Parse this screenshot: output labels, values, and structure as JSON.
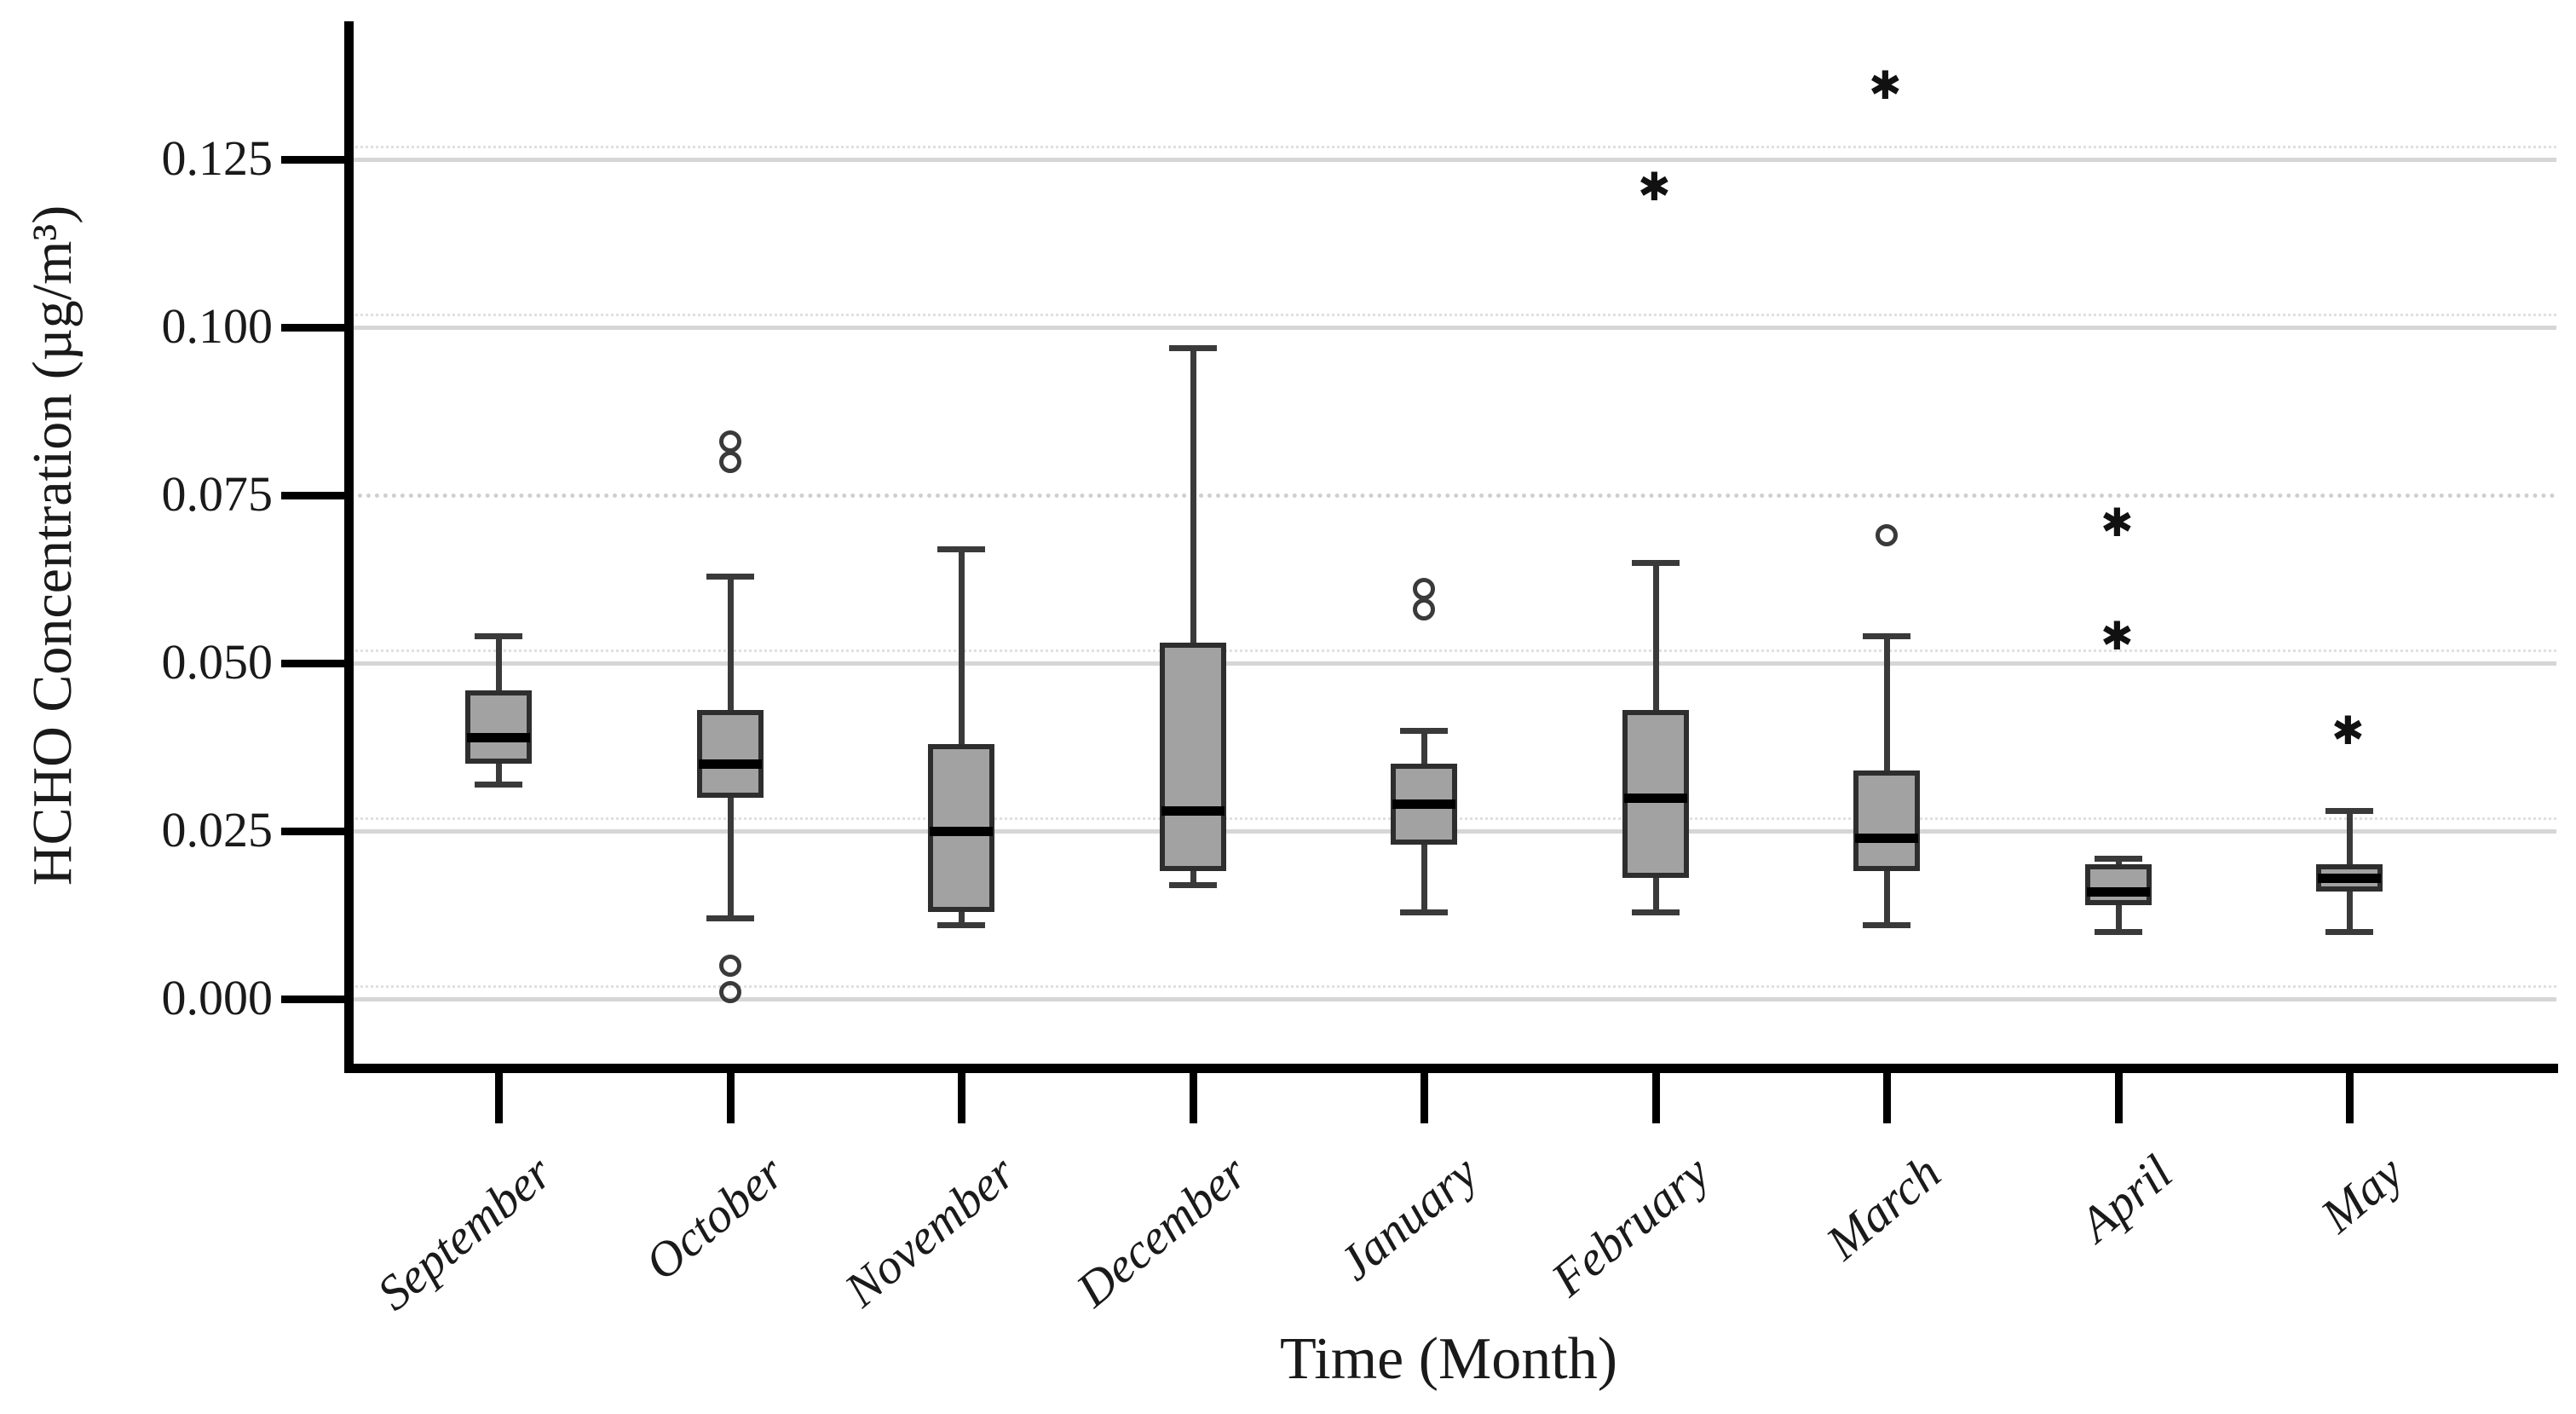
{
  "chart_data": {
    "type": "box",
    "title": "",
    "xlabel": "Time (Month)",
    "ylabel": "HCHO Concentration (µg/m³)",
    "ylim": [
      -0.01,
      0.147
    ],
    "grid": "horizontal",
    "legend": "none",
    "yticks": [
      {
        "v": 0.0,
        "label": "0.000"
      },
      {
        "v": 0.025,
        "label": "0.025"
      },
      {
        "v": 0.05,
        "label": "0.050"
      },
      {
        "v": 0.075,
        "label": "0.075"
      },
      {
        "v": 0.1,
        "label": "0.100"
      },
      {
        "v": 0.125,
        "label": "0.125"
      }
    ],
    "categories": [
      "September",
      "October",
      "November",
      "December",
      "January",
      "February",
      "March",
      "April",
      "May"
    ],
    "series": [
      {
        "name": "September",
        "whisker_low": 0.032,
        "q1": 0.035,
        "median": 0.039,
        "q3": 0.046,
        "whisker_high": 0.054,
        "outliers_circle": [],
        "outliers_star": []
      },
      {
        "name": "October",
        "whisker_low": 0.012,
        "q1": 0.03,
        "median": 0.035,
        "q3": 0.043,
        "whisker_high": 0.063,
        "outliers_circle": [
          0.083,
          0.08,
          0.005,
          0.001
        ],
        "outliers_star": []
      },
      {
        "name": "November",
        "whisker_low": 0.011,
        "q1": 0.013,
        "median": 0.025,
        "q3": 0.038,
        "whisker_high": 0.067,
        "outliers_circle": [],
        "outliers_star": []
      },
      {
        "name": "December",
        "whisker_low": 0.017,
        "q1": 0.019,
        "median": 0.028,
        "q3": 0.053,
        "whisker_high": 0.097,
        "outliers_circle": [],
        "outliers_star": []
      },
      {
        "name": "January",
        "whisker_low": 0.013,
        "q1": 0.023,
        "median": 0.029,
        "q3": 0.035,
        "whisker_high": 0.04,
        "outliers_circle": [
          0.061,
          0.058
        ],
        "outliers_star": []
      },
      {
        "name": "February",
        "whisker_low": 0.013,
        "q1": 0.018,
        "median": 0.03,
        "q3": 0.043,
        "whisker_high": 0.065,
        "outliers_circle": [],
        "outliers_star": [
          0.121
        ]
      },
      {
        "name": "March",
        "whisker_low": 0.011,
        "q1": 0.019,
        "median": 0.024,
        "q3": 0.034,
        "whisker_high": 0.054,
        "outliers_circle": [
          0.069
        ],
        "outliers_star": [
          0.136
        ]
      },
      {
        "name": "April",
        "whisker_low": 0.01,
        "q1": 0.014,
        "median": 0.016,
        "q3": 0.02,
        "whisker_high": 0.021,
        "outliers_circle": [],
        "outliers_star": [
          0.071,
          0.054
        ]
      },
      {
        "name": "May",
        "whisker_low": 0.01,
        "q1": 0.016,
        "median": 0.018,
        "q3": 0.02,
        "whisker_high": 0.028,
        "outliers_circle": [],
        "outliers_star": [
          0.04
        ]
      }
    ]
  },
  "style": {
    "box_fill": "#a2a2a2",
    "box_border": "#2e2e2e",
    "median_color": "#000000",
    "whisker_color": "#3a3a3a",
    "grid_color": "#d6d6d6",
    "axis_color": "#000000",
    "text_color": "#1a1a1a",
    "background": "#ffffff",
    "star_marker": "✱"
  }
}
